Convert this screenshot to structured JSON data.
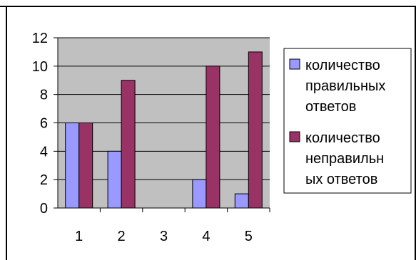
{
  "chart_data": {
    "type": "bar",
    "categories": [
      "1",
      "2",
      "3",
      "4",
      "5"
    ],
    "series": [
      {
        "name": "количество правильных ответов",
        "name_lines": [
          "количество",
          "правильных",
          "ответов"
        ],
        "values": [
          6,
          4,
          0,
          2,
          1
        ],
        "color": "#9999ff"
      },
      {
        "name": "количество неправильных ответов",
        "name_lines": [
          "количество",
          "неправильн",
          "ых ответов"
        ],
        "values": [
          6,
          9,
          0,
          10,
          11
        ],
        "color": "#993366"
      }
    ],
    "y_ticks": [
      "0",
      "2",
      "4",
      "6",
      "8",
      "10",
      "12"
    ],
    "ylim": [
      0,
      12
    ],
    "grid": true,
    "plot_background": "#c0c0c0",
    "legend_position": "right",
    "title": "",
    "xlabel": "",
    "ylabel": ""
  }
}
